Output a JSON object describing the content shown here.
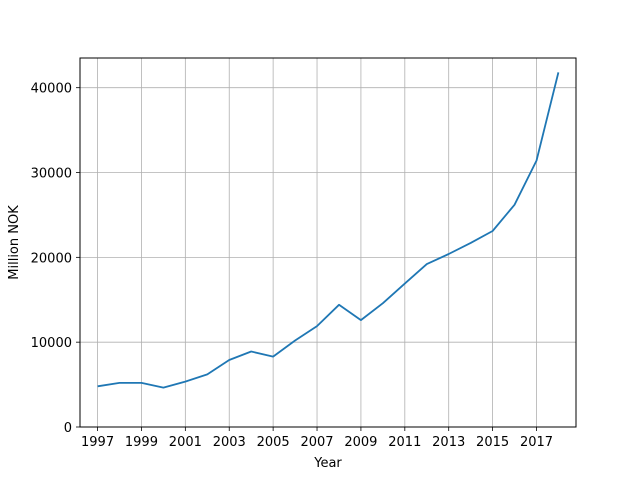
{
  "chart_data": {
    "type": "line",
    "title": "",
    "xlabel": "Year",
    "ylabel": "Million NOK",
    "grid": true,
    "xlim": [
      1996.2,
      2018.8
    ],
    "ylim": [
      0,
      43500
    ],
    "x_ticks": [
      1997,
      1999,
      2001,
      2003,
      2005,
      2007,
      2009,
      2011,
      2013,
      2015,
      2017
    ],
    "y_ticks": [
      0,
      10000,
      20000,
      30000,
      40000
    ],
    "x_tick_labels": [
      "1997",
      "1999",
      "2001",
      "2003",
      "2005",
      "2007",
      "2009",
      "2011",
      "2013",
      "2015",
      "2017"
    ],
    "y_tick_labels": [
      "0",
      "10000",
      "20000",
      "30000",
      "40000"
    ],
    "series": [
      {
        "color": "#1f77b4",
        "x": [
          1997,
          1998,
          1999,
          2000,
          2001,
          2002,
          2003,
          2004,
          2005,
          2006,
          2007,
          2008,
          2009,
          2010,
          2011,
          2012,
          2013,
          2014,
          2015,
          2016,
          2017,
          2018
        ],
        "values": [
          4800,
          5200,
          5200,
          4650,
          5350,
          6200,
          7900,
          8900,
          8300,
          10200,
          11900,
          14400,
          12600,
          14600,
          16900,
          19200,
          20400,
          21700,
          23100,
          26200,
          31400,
          41800
        ]
      }
    ]
  }
}
